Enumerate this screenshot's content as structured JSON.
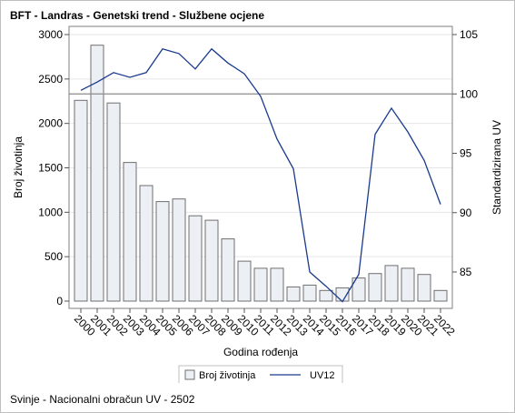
{
  "chart_data": {
    "type": "bar+line",
    "title": "BFT - Landras - Genetski trend - Službene ocjene",
    "footnote": "Svinje - Nacionalni obračun UV - 2502",
    "xlabel": "Godina rođenja",
    "ylabel_left": "Broj životinja",
    "ylabel_right": "Standardizirana UV",
    "categories": [
      "2000",
      "2001",
      "2002",
      "2003",
      "2004",
      "2005",
      "2006",
      "2007",
      "2008",
      "2009",
      "2010",
      "2011",
      "2012",
      "2013",
      "2014",
      "2015",
      "2016",
      "2017",
      "2018",
      "2019",
      "2020",
      "2021",
      "2022"
    ],
    "bar_series": {
      "name": "Broj životinja",
      "axis": "left",
      "values": [
        2260,
        2880,
        2230,
        1560,
        1300,
        1120,
        1150,
        960,
        910,
        700,
        450,
        370,
        370,
        160,
        180,
        120,
        150,
        260,
        310,
        400,
        370,
        300,
        120
      ],
      "ylim": [
        0,
        3000
      ],
      "yticks": [
        0,
        500,
        1000,
        1500,
        2000,
        2500,
        3000
      ],
      "color": "#eceff4",
      "edge_color": "#6f6f6f"
    },
    "line_series": {
      "name": "UV12",
      "axis": "right",
      "values": [
        100.3,
        101.0,
        101.8,
        101.4,
        101.8,
        103.8,
        103.4,
        102.1,
        103.8,
        102.6,
        101.7,
        99.8,
        96.2,
        93.7,
        85.0,
        83.8,
        82.5,
        84.8,
        96.6,
        98.8,
        96.8,
        94.4,
        90.7
      ],
      "ylim": [
        82.5,
        105
      ],
      "yticks": [
        85,
        90,
        95,
        100,
        105
      ],
      "reference_line": 100,
      "color": "#1a3b8c"
    },
    "grid": "horizontal",
    "legend_position": "bottom-center"
  }
}
